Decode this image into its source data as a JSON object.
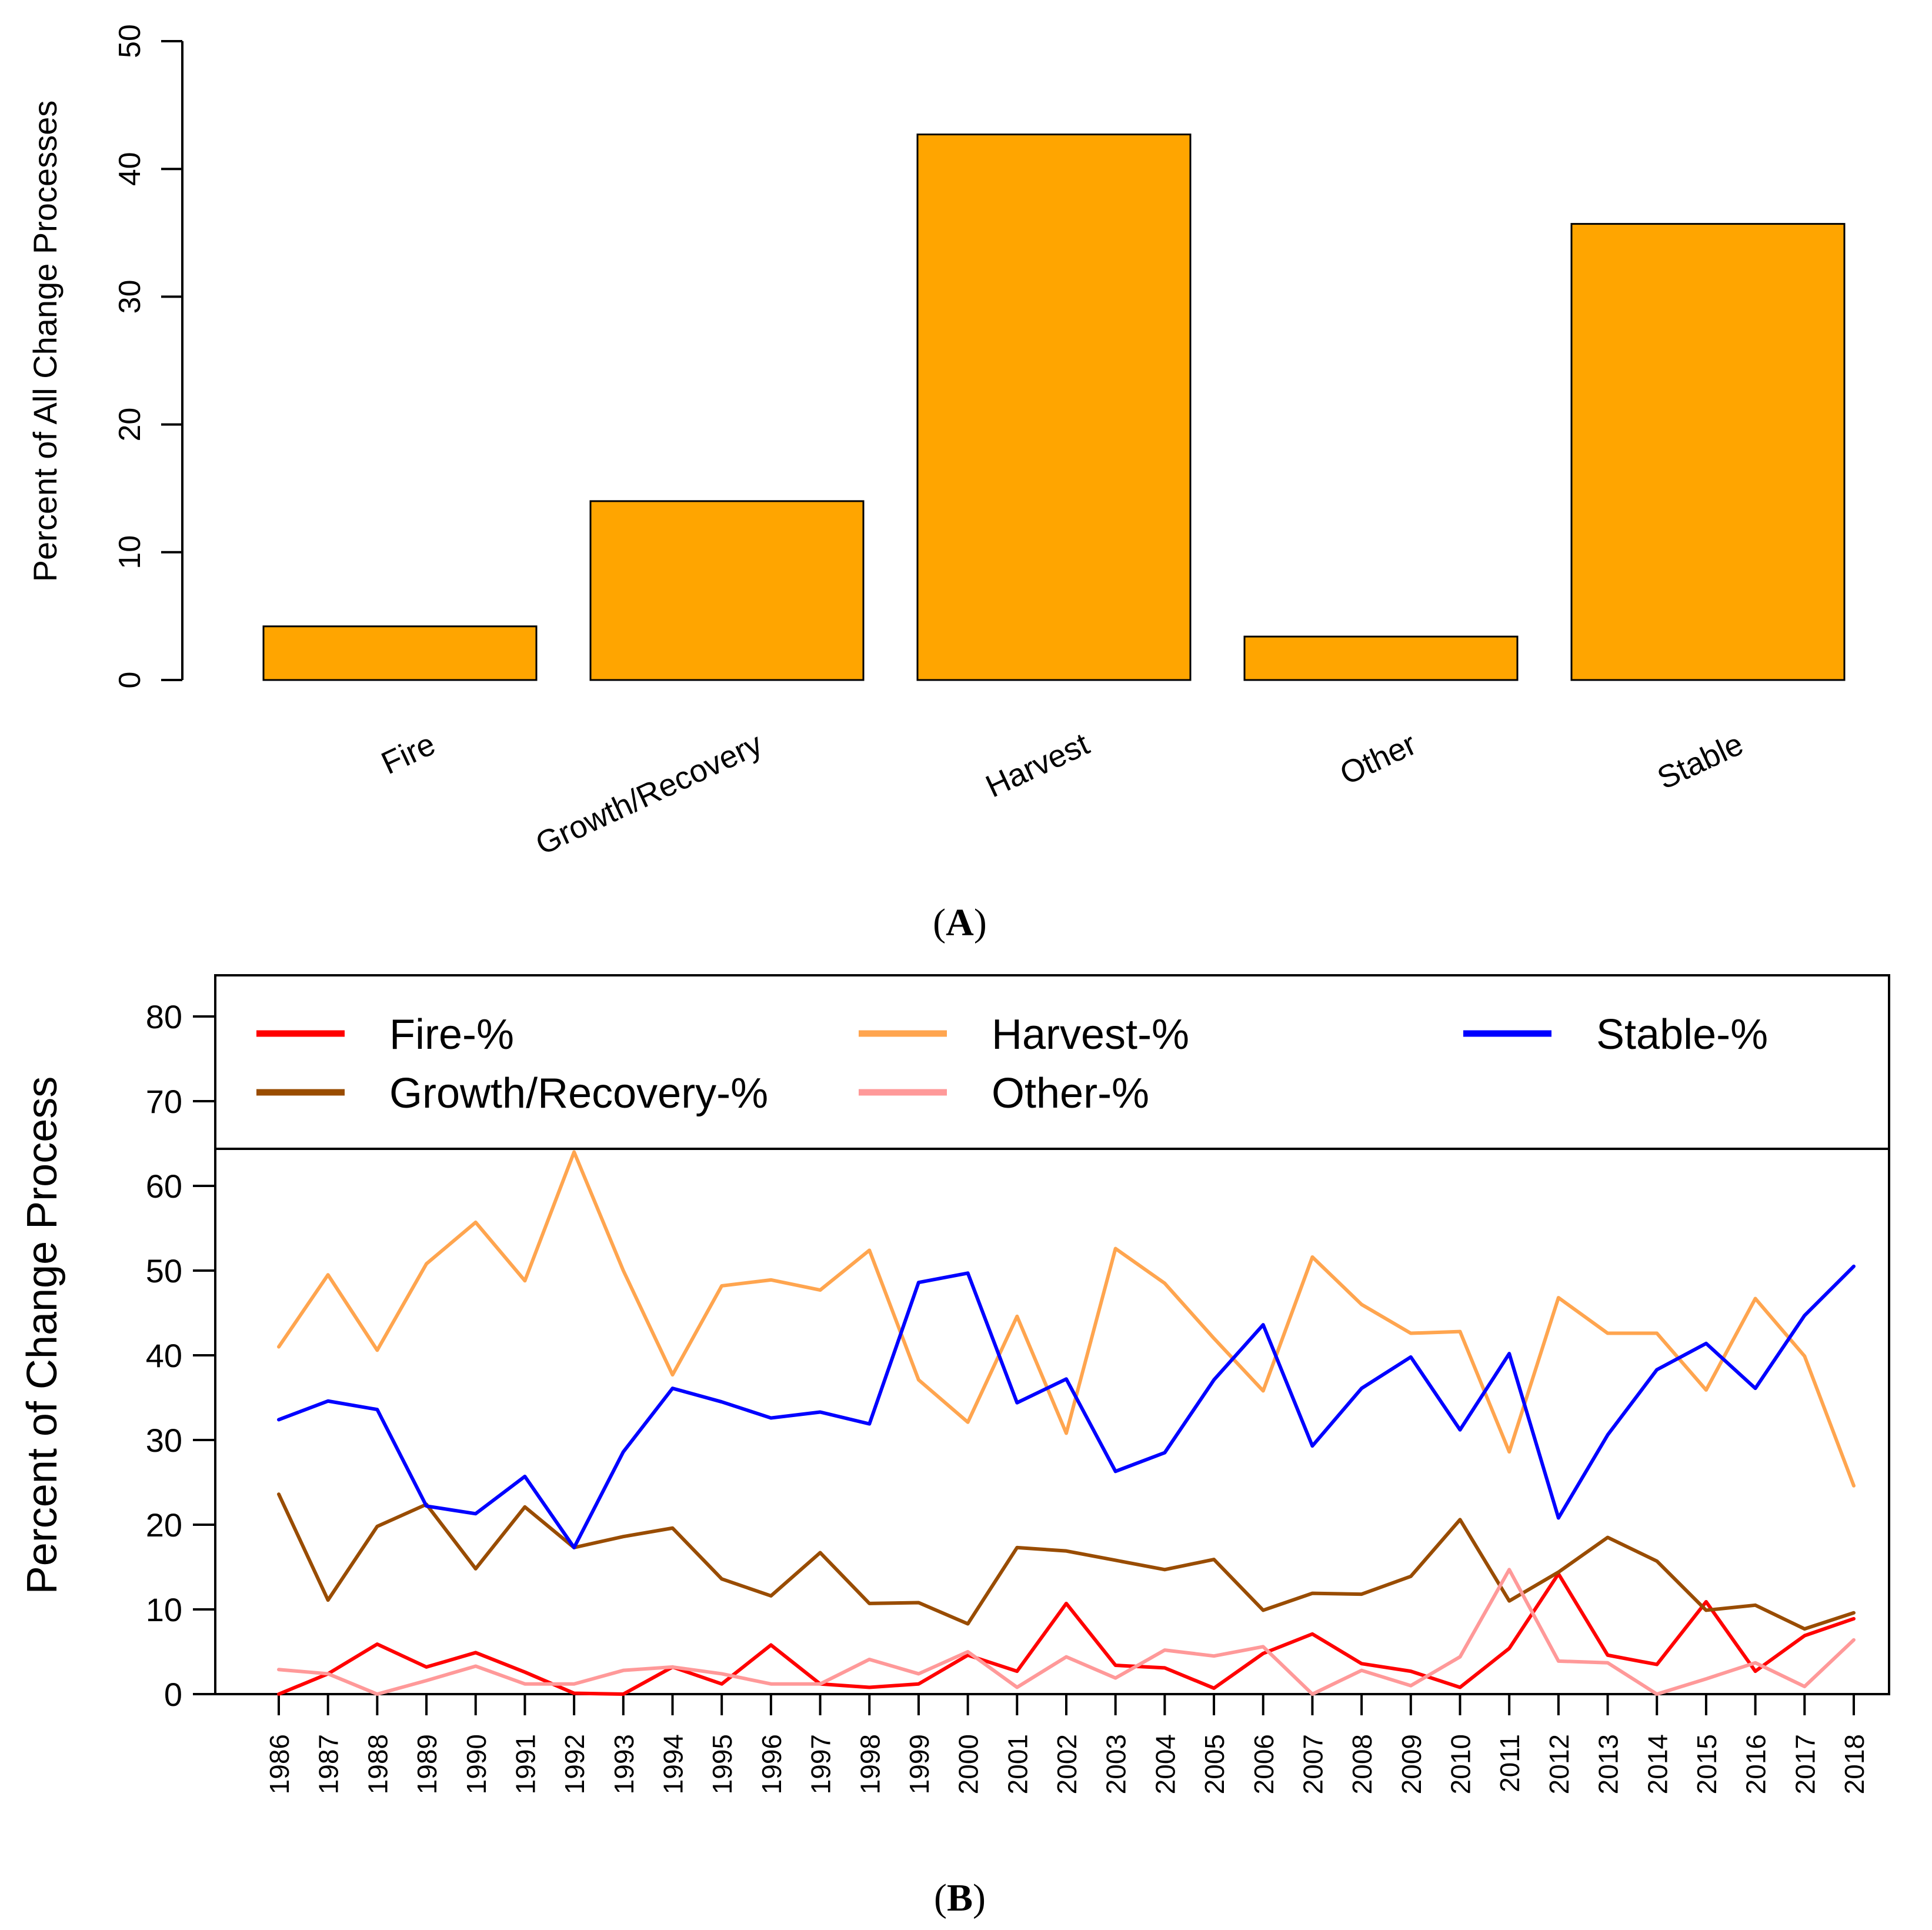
{
  "chart_data": [
    {
      "type": "bar",
      "panel_label": "A",
      "title": "",
      "xlabel": "",
      "ylabel": "Percent of All Change Processes",
      "ylim": [
        0,
        50
      ],
      "yticks": [
        0,
        10,
        20,
        30,
        40,
        50
      ],
      "categories": [
        "Fire",
        "Growth/Recovery",
        "Harvest",
        "Other",
        "Stable"
      ],
      "values": [
        4.2,
        14.0,
        42.7,
        3.4,
        35.7
      ],
      "bar_color": "#FFA500",
      "grid": false
    },
    {
      "type": "line",
      "panel_label": "B",
      "title": "",
      "xlabel": "",
      "ylabel": "Percent of Change Process",
      "ylim": [
        0,
        80
      ],
      "yticks": [
        0,
        10,
        20,
        30,
        40,
        50,
        60,
        70,
        80
      ],
      "x": [
        1986,
        1987,
        1988,
        1989,
        1990,
        1991,
        1992,
        1993,
        1994,
        1995,
        1996,
        1997,
        1998,
        1999,
        2000,
        2001,
        2002,
        2003,
        2004,
        2005,
        2006,
        2007,
        2008,
        2009,
        2010,
        2011,
        2012,
        2013,
        2014,
        2015,
        2016,
        2017,
        2018
      ],
      "legend_position": "top",
      "grid": false,
      "series": [
        {
          "name": "Fire-%",
          "color": "#FF0000",
          "values": [
            0.0,
            2.4,
            5.9,
            3.2,
            4.9,
            2.6,
            0.1,
            0.0,
            3.2,
            1.2,
            5.8,
            1.2,
            0.8,
            1.2,
            4.6,
            2.7,
            10.7,
            3.4,
            3.1,
            0.7,
            4.8,
            7.1,
            3.6,
            2.7,
            0.8,
            5.4,
            14.2,
            4.6,
            3.5,
            10.9,
            2.7,
            6.9,
            8.9
          ]
        },
        {
          "name": "Growth/Recovery-%",
          "color": "#994C00",
          "values": [
            23.6,
            11.1,
            19.8,
            22.4,
            14.8,
            22.1,
            17.3,
            18.6,
            19.6,
            13.6,
            11.6,
            16.7,
            10.7,
            10.8,
            8.3,
            17.3,
            16.9,
            15.8,
            14.7,
            15.9,
            9.9,
            11.9,
            11.8,
            13.9,
            20.6,
            11.0,
            14.4,
            18.5,
            15.7,
            9.9,
            10.5,
            7.7,
            9.6
          ]
        },
        {
          "name": "Harvest-%",
          "color": "#FFA54F",
          "values": [
            41.0,
            49.5,
            40.6,
            50.8,
            55.7,
            48.8,
            64.0,
            50.0,
            37.7,
            48.2,
            48.9,
            47.7,
            52.4,
            37.1,
            32.1,
            44.6,
            30.8,
            52.6,
            48.5,
            42.0,
            35.8,
            51.6,
            46.0,
            42.6,
            42.8,
            28.6,
            46.8,
            42.6,
            42.6,
            35.9,
            46.7,
            39.9,
            24.6
          ]
        },
        {
          "name": "Other-%",
          "color": "#FF9999",
          "values": [
            2.9,
            2.4,
            0.0,
            1.6,
            3.3,
            1.2,
            1.2,
            2.8,
            3.2,
            2.4,
            1.2,
            1.2,
            4.1,
            2.4,
            5.0,
            0.8,
            4.4,
            1.9,
            5.2,
            4.5,
            5.6,
            0.0,
            2.8,
            1.0,
            4.4,
            14.7,
            3.9,
            3.7,
            0.0,
            1.8,
            3.7,
            0.9,
            6.4
          ]
        },
        {
          "name": "Stable-%",
          "color": "#0000FF",
          "values": [
            32.4,
            34.6,
            33.6,
            22.2,
            21.3,
            25.7,
            17.3,
            28.6,
            36.1,
            34.5,
            32.6,
            33.3,
            31.9,
            48.6,
            49.7,
            34.4,
            37.2,
            26.3,
            28.5,
            37.1,
            43.6,
            29.3,
            36.1,
            39.8,
            31.2,
            40.2,
            20.8,
            30.6,
            38.3,
            41.4,
            36.1,
            44.7,
            50.5
          ]
        }
      ]
    }
  ]
}
